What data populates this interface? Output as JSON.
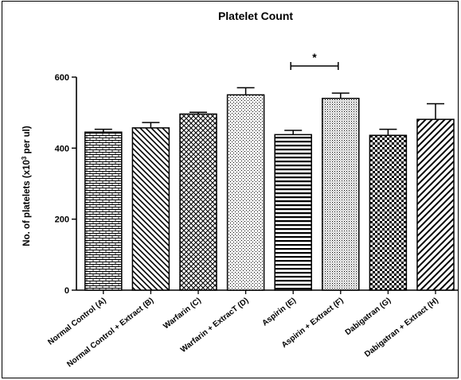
{
  "chart_data": {
    "type": "bar",
    "title": "Platelet Count",
    "ylabel_main": "No. of platelets (x10",
    "ylabel_sup": "3",
    "ylabel_tail": " per ul)",
    "ylim": [
      0,
      600
    ],
    "yticks": [
      0,
      200,
      400,
      600
    ],
    "grid": false,
    "categories": [
      "Normal Control (A)",
      "Normal Control + Extract (B)",
      "Warfarin (C)",
      "Warfarin + ExtracT (D)",
      "Aspirin (E)",
      "Aspirin + Extract (F)",
      "Dabigatran (G)",
      "Dabigatran + Extract (H)"
    ],
    "values": [
      445,
      457,
      496,
      550,
      438,
      540,
      436,
      481
    ],
    "errors": [
      8,
      15,
      5,
      20,
      12,
      15,
      17,
      44
    ],
    "patterns": [
      "bricks",
      "diag-back",
      "crosshatch",
      "dots",
      "hlines",
      "finedots",
      "checker",
      "diag-fwd"
    ],
    "significance": [
      {
        "from": 4,
        "to": 5,
        "label": "*"
      }
    ]
  }
}
